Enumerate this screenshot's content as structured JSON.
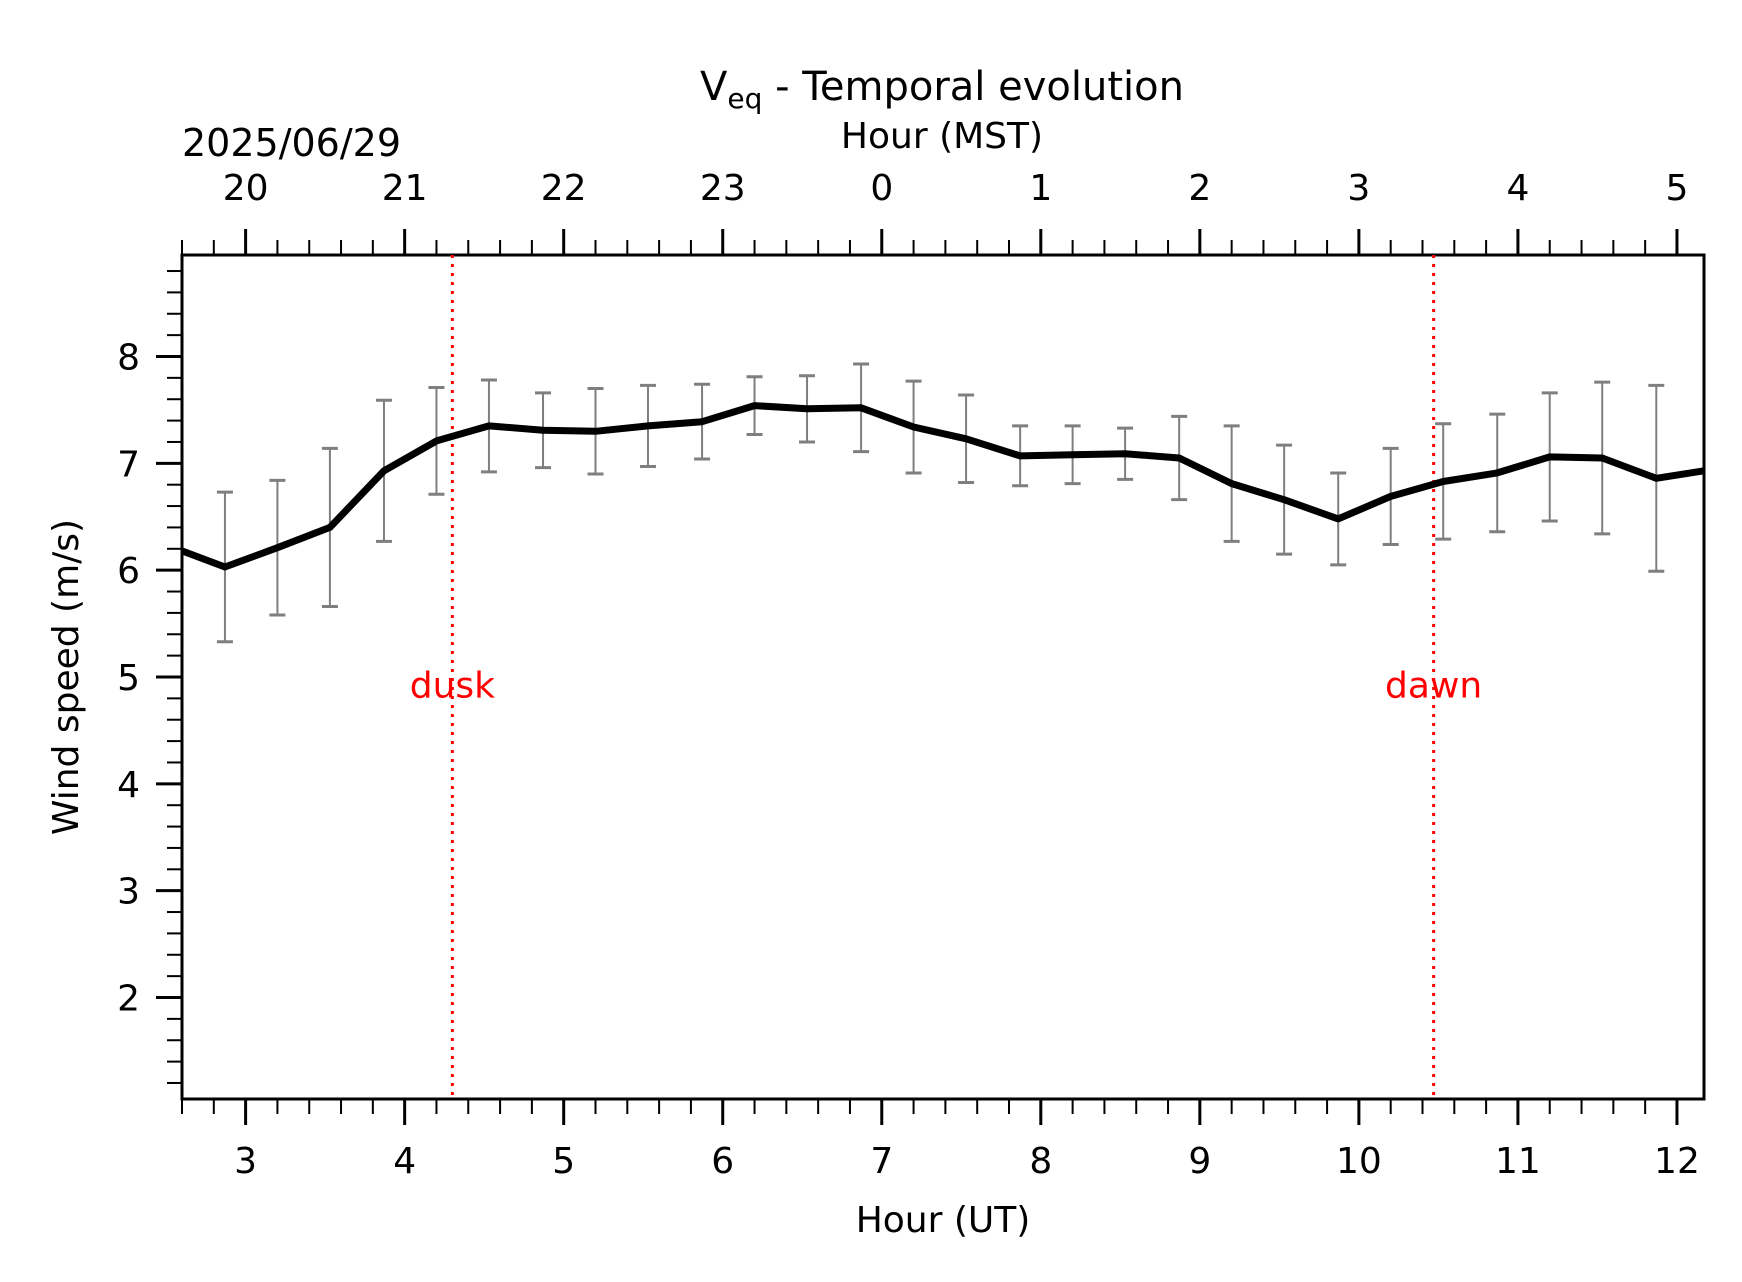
{
  "chart_data": {
    "type": "line",
    "title_main": "V",
    "title_sub": "eq",
    "title_rest": " - Temporal evolution",
    "top_axis_label": "Hour (MST)",
    "date_label": "2025/06/29",
    "xlabel": "Hour (UT)",
    "ylabel": "Wind speed (m/s)",
    "xlim": [
      2.6,
      12.17
    ],
    "ylim": [
      1.05,
      8.95
    ],
    "x_ticks": [
      3,
      4,
      5,
      6,
      7,
      8,
      9,
      10,
      11,
      12
    ],
    "x_tick_labels": [
      "3",
      "4",
      "5",
      "6",
      "7",
      "8",
      "9",
      "10",
      "11",
      "12"
    ],
    "top_ticks_ut": [
      3,
      4,
      5,
      6,
      7,
      8,
      9,
      10,
      11,
      12
    ],
    "top_tick_labels": [
      "20",
      "21",
      "22",
      "23",
      "0",
      "1",
      "2",
      "3",
      "4",
      "5"
    ],
    "y_ticks": [
      2,
      3,
      4,
      5,
      6,
      7,
      8
    ],
    "y_tick_labels": [
      "2",
      "3",
      "4",
      "5",
      "6",
      "7",
      "8"
    ],
    "grid": false,
    "series": [
      {
        "color": "#000000",
        "x": [
          2.6,
          2.87,
          3.2,
          3.53,
          3.87,
          4.2,
          4.53,
          4.87,
          5.2,
          5.53,
          5.87,
          6.2,
          6.53,
          6.87,
          7.2,
          7.53,
          7.87,
          8.2,
          8.53,
          8.87,
          9.2,
          9.53,
          9.87,
          10.2,
          10.53,
          10.87,
          11.2,
          11.53,
          11.87,
          12.17
        ],
        "y": [
          6.18,
          6.03,
          6.21,
          6.4,
          6.93,
          7.21,
          7.35,
          7.31,
          7.3,
          7.35,
          7.39,
          7.54,
          7.51,
          7.52,
          7.34,
          7.23,
          7.07,
          7.08,
          7.09,
          7.05,
          6.81,
          6.66,
          6.48,
          6.69,
          6.83,
          6.91,
          7.06,
          7.05,
          6.86,
          6.93
        ],
        "error": [
          null,
          0.7,
          0.63,
          0.74,
          0.66,
          0.5,
          0.43,
          0.35,
          0.4,
          0.38,
          0.35,
          0.27,
          0.31,
          0.41,
          0.43,
          0.41,
          0.28,
          0.27,
          0.24,
          0.39,
          0.54,
          0.51,
          0.43,
          0.45,
          0.54,
          0.55,
          0.6,
          0.71,
          0.87,
          null
        ],
        "error_color": "#7f7f7f"
      }
    ],
    "events": [
      {
        "x": 4.3,
        "label": "dusk",
        "color": "#ff0000"
      },
      {
        "x": 10.47,
        "label": "dawn",
        "color": "#ff0000"
      }
    ]
  }
}
